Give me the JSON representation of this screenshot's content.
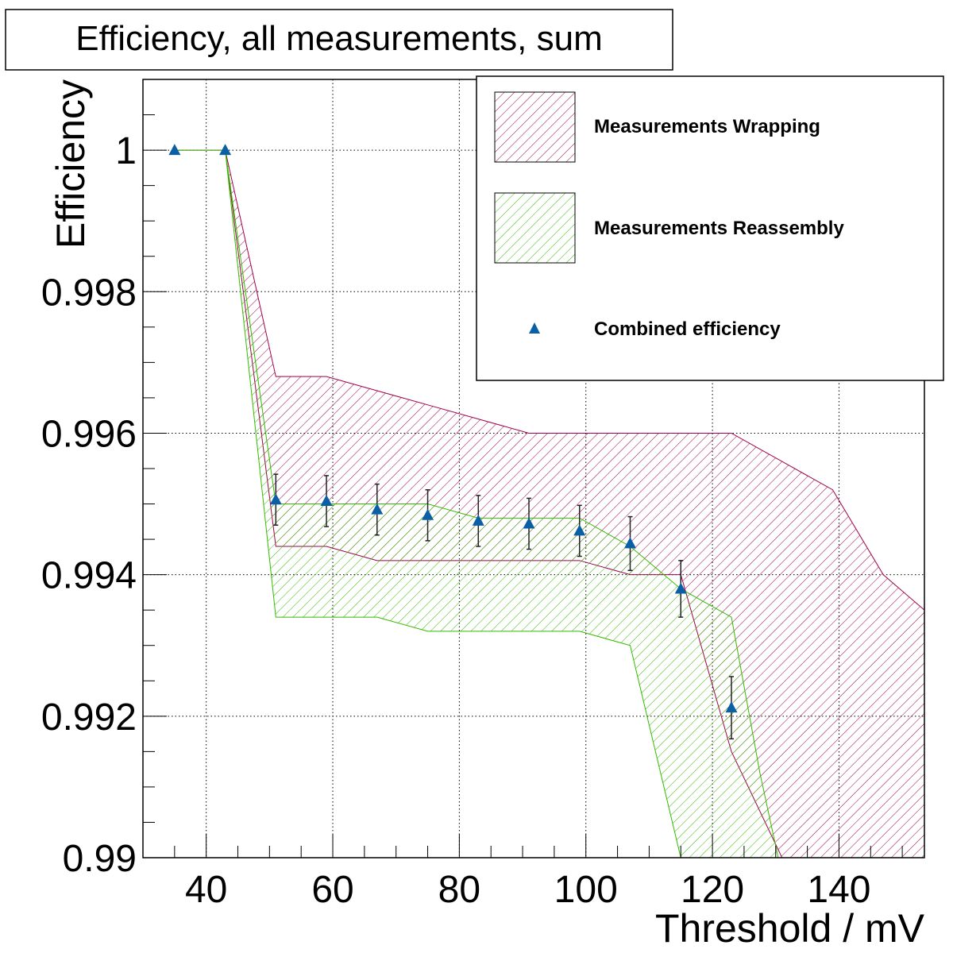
{
  "chart_data": {
    "type": "line",
    "title": "Efficiency, all measurements, sum",
    "xlabel": "Threshold / mV",
    "ylabel": "Efficiency",
    "xlim": [
      30,
      153.5
    ],
    "ylim": [
      0.99,
      1.001
    ],
    "grid": true,
    "x_ticks": [
      40,
      60,
      80,
      100,
      120,
      140
    ],
    "y_ticks": [
      0.99,
      0.992,
      0.994,
      0.996,
      0.998,
      1
    ],
    "x_tick_labels": [
      "40",
      "60",
      "80",
      "100",
      "120",
      "140"
    ],
    "y_tick_labels": [
      "0.99",
      "0.992",
      "0.994",
      "0.996",
      "0.998",
      "1"
    ],
    "legend_position": "top-right",
    "series": [
      {
        "name": "Measurements Wrapping",
        "kind": "band",
        "color": "#a0004a",
        "x": [
          35,
          43,
          51,
          59,
          67,
          75,
          83,
          91,
          99,
          107,
          115,
          123,
          131,
          139,
          147,
          153.5
        ],
        "upper": [
          1.0,
          1.0,
          0.9968,
          0.9968,
          0.9966,
          0.9964,
          0.9962,
          0.996,
          0.996,
          0.996,
          0.996,
          0.996,
          0.9956,
          0.9952,
          0.994,
          0.9935
        ],
        "lower": [
          1.0,
          1.0,
          0.9944,
          0.9944,
          0.9942,
          0.9942,
          0.9942,
          0.9942,
          0.9942,
          0.994,
          0.994,
          0.9915,
          0.99,
          0.99,
          0.99,
          0.99
        ]
      },
      {
        "name": "Measurements Reassembly",
        "kind": "band",
        "color": "#33bb00",
        "x": [
          35,
          43,
          51,
          59,
          67,
          75,
          83,
          91,
          99,
          107,
          115,
          123,
          127.5,
          130.4
        ],
        "upper": [
          1.0,
          1.0,
          0.995,
          0.995,
          0.995,
          0.995,
          0.9948,
          0.9948,
          0.9948,
          0.9944,
          0.9938,
          0.9934,
          0.9912,
          0.99
        ],
        "lower": [
          1.0,
          1.0,
          0.9934,
          0.9934,
          0.9934,
          0.9932,
          0.9932,
          0.9932,
          0.9932,
          0.993,
          0.99,
          0.99,
          0.99,
          0.99
        ]
      },
      {
        "name": "Combined efficiency",
        "kind": "points",
        "color": "#0b5fa5",
        "x": [
          35,
          43,
          51,
          59,
          67,
          75,
          83,
          91,
          99,
          107,
          115,
          123
        ],
        "y": [
          1.0,
          1.0,
          0.99506,
          0.99504,
          0.99492,
          0.99484,
          0.99476,
          0.99472,
          0.99462,
          0.99444,
          0.9938,
          0.99212
        ],
        "err": [
          0,
          0,
          0.00036,
          0.00036,
          0.00036,
          0.00036,
          0.00036,
          0.00036,
          0.00036,
          0.00038,
          0.0004,
          0.00044
        ]
      }
    ]
  }
}
